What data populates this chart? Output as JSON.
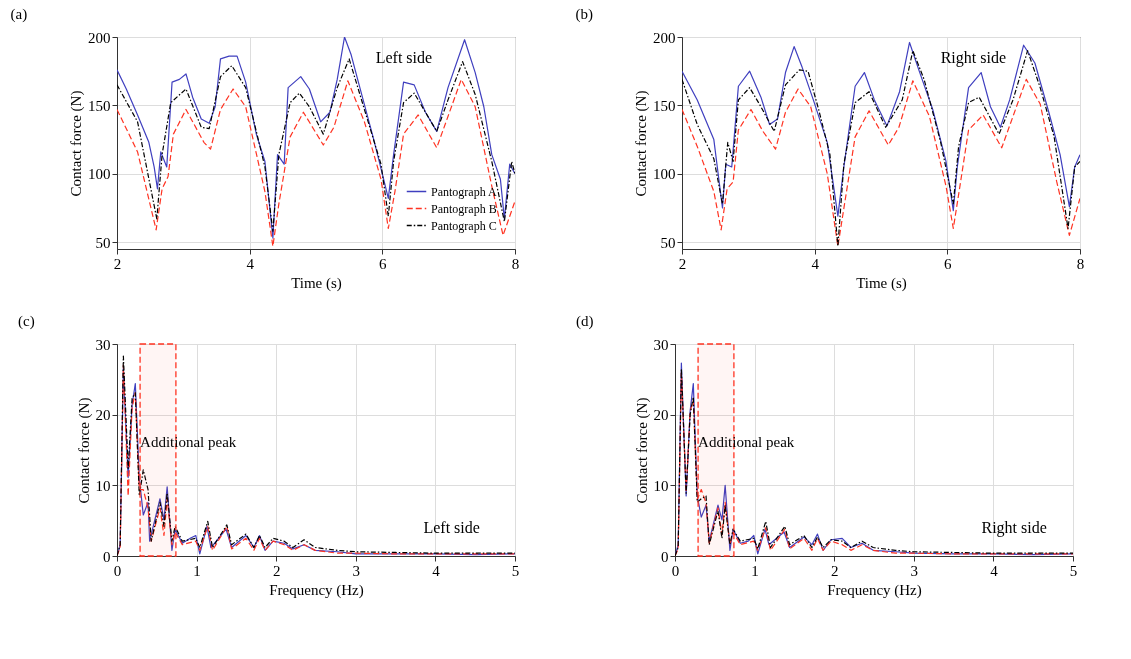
{
  "chart_data": [
    {
      "type": "line",
      "title": "(a)",
      "xlabel": "Time (s)",
      "ylabel": "Contact force (N)",
      "xlim": [
        2,
        8
      ],
      "ylim": [
        45,
        200
      ],
      "xticks": [
        2,
        4,
        6,
        8
      ],
      "yticks": [
        50,
        100,
        150,
        200
      ],
      "grid": true,
      "legend": "bottom right",
      "annotations": [
        "Left side"
      ],
      "series": [
        {
          "name": "Pantograph A",
          "color": "#3f3fbf",
          "line_style": "solid",
          "x": [
            2.0,
            2.14,
            2.31,
            2.48,
            2.56,
            2.61,
            2.66,
            2.75,
            2.83,
            2.94,
            3.04,
            3.14,
            3.27,
            3.39,
            3.48,
            3.56,
            3.69,
            3.81,
            3.94,
            4.1,
            4.23,
            4.35,
            4.42,
            4.52,
            4.58,
            4.77,
            4.9,
            5.07,
            5.21,
            5.32,
            5.43,
            5.53,
            5.65,
            5.86,
            6.0,
            6.09,
            6.17,
            6.32,
            6.48,
            6.65,
            6.82,
            6.99,
            7.24,
            7.4,
            7.53,
            7.65,
            7.78,
            7.84,
            7.92,
            8.0
          ],
          "values": [
            176,
            162,
            143,
            123,
            105,
            89,
            116,
            105,
            167,
            169,
            173,
            156,
            140,
            137,
            149,
            184,
            186,
            186,
            167,
            129,
            109,
            53,
            114,
            107,
            163,
            171,
            162,
            138,
            145,
            169,
            200,
            187,
            165,
            127,
            100,
            82,
            114,
            167,
            165,
            145,
            131,
            163,
            198,
            174,
            149,
            114,
            96,
            67,
            107,
            100
          ]
        },
        {
          "name": "Pantograph B",
          "color": "#ff3322",
          "line_style": "dashed",
          "x": [
            2.0,
            2.31,
            2.59,
            2.68,
            2.77,
            2.85,
            3.04,
            3.31,
            3.41,
            3.56,
            3.75,
            3.94,
            4.23,
            4.35,
            4.44,
            4.61,
            4.81,
            5.11,
            5.27,
            5.48,
            5.73,
            5.98,
            6.09,
            6.19,
            6.32,
            6.54,
            6.82,
            7.19,
            7.4,
            7.65,
            7.82,
            8.0
          ],
          "values": [
            147,
            116,
            59,
            89,
            98,
            129,
            147,
            123,
            118,
            147,
            162,
            149,
            87,
            47,
            78,
            127,
            145,
            121,
            134,
            168,
            138,
            96,
            60,
            87,
            129,
            143,
            119,
            169,
            149,
            91,
            55,
            80
          ]
        },
        {
          "name": "Pantograph C",
          "color": "#000000",
          "line_style": "dotted",
          "x": [
            2.0,
            2.31,
            2.6,
            2.68,
            2.81,
            3.04,
            3.27,
            3.39,
            3.56,
            3.73,
            3.94,
            4.23,
            4.35,
            4.44,
            4.61,
            4.75,
            4.9,
            5.11,
            5.32,
            5.5,
            5.73,
            5.98,
            6.09,
            6.17,
            6.32,
            6.48,
            6.82,
            6.99,
            7.21,
            7.4,
            7.65,
            7.84,
            7.95,
            8.0
          ],
          "values": [
            165,
            138,
            67,
            114,
            152,
            162,
            134,
            133,
            171,
            179,
            163,
            105,
            58,
            114,
            152,
            159,
            149,
            129,
            163,
            184,
            147,
            107,
            69,
            109,
            152,
            159,
            131,
            154,
            182,
            158,
            109,
            65,
            109,
            100
          ]
        }
      ]
    },
    {
      "type": "line",
      "title": "(b)",
      "xlabel": "Time (s)",
      "ylabel": "Contact force (N)",
      "xlim": [
        2,
        8
      ],
      "ylim": [
        45,
        200
      ],
      "xticks": [
        2,
        4,
        6,
        8
      ],
      "yticks": [
        50,
        100,
        150,
        200
      ],
      "grid": true,
      "annotations": [
        "Right side"
      ],
      "series": [
        {
          "color": "#3f3fbf",
          "line_style": "solid",
          "x": [
            2.0,
            2.23,
            2.48,
            2.61,
            2.66,
            2.75,
            2.85,
            3.02,
            3.19,
            3.32,
            3.44,
            3.56,
            3.69,
            3.81,
            3.98,
            4.19,
            4.35,
            4.44,
            4.61,
            4.75,
            4.9,
            5.09,
            5.28,
            5.43,
            5.57,
            5.78,
            5.98,
            6.09,
            6.15,
            6.32,
            6.51,
            6.65,
            6.8,
            6.94,
            7.15,
            7.32,
            7.53,
            7.7,
            7.84,
            7.92,
            8.0
          ],
          "values": [
            175,
            154,
            125,
            75,
            107,
            105,
            164,
            175,
            156,
            136,
            140,
            174,
            193,
            178,
            154,
            123,
            69,
            105,
            164,
            174,
            154,
            135,
            160,
            196,
            176,
            147,
            109,
            73,
            105,
            163,
            174,
            149,
            134,
            154,
            194,
            181,
            145,
            114,
            76,
            105,
            114
          ]
        },
        {
          "color": "#ff3322",
          "line_style": "dashed",
          "x": [
            2.0,
            2.23,
            2.48,
            2.59,
            2.68,
            2.77,
            2.85,
            3.04,
            3.22,
            3.41,
            3.56,
            3.75,
            3.94,
            4.19,
            4.35,
            4.48,
            4.61,
            4.82,
            5.11,
            5.27,
            5.48,
            5.73,
            5.98,
            6.09,
            6.19,
            6.32,
            6.54,
            6.82,
            7.19,
            7.4,
            7.65,
            7.84,
            8.0
          ],
          "values": [
            147,
            120,
            87,
            59,
            89,
            94,
            132,
            147,
            131,
            118,
            145,
            162,
            149,
            100,
            47,
            87,
            127,
            146,
            121,
            134,
            168,
            142,
            91,
            60,
            91,
            132,
            143,
            119,
            169,
            151,
            94,
            55,
            82
          ]
        },
        {
          "color": "#000000",
          "line_style": "dotted",
          "x": [
            2.0,
            2.23,
            2.48,
            2.61,
            2.69,
            2.77,
            2.85,
            3.02,
            3.19,
            3.39,
            3.56,
            3.77,
            3.9,
            4.06,
            4.23,
            4.35,
            4.44,
            4.61,
            4.82,
            5.07,
            5.32,
            5.48,
            5.65,
            5.9,
            6.09,
            6.17,
            6.32,
            6.48,
            6.78,
            6.99,
            7.21,
            7.4,
            7.61,
            7.82,
            7.92,
            8.0
          ],
          "values": [
            169,
            136,
            111,
            78,
            123,
            109,
            154,
            163,
            149,
            131,
            165,
            176,
            175,
            147,
            114,
            47,
            107,
            152,
            160,
            134,
            154,
            190,
            169,
            123,
            78,
            120,
            152,
            156,
            129,
            154,
            190,
            163,
            127,
            60,
            105,
            109
          ]
        }
      ]
    },
    {
      "type": "line",
      "title": "(c)",
      "xlabel": "Frequency (Hz)",
      "ylabel": "Contact force (N)",
      "xlim": [
        0,
        5
      ],
      "ylim": [
        0,
        30
      ],
      "xticks": [
        0,
        1,
        2,
        3,
        4,
        5
      ],
      "yticks": [
        0,
        10,
        20,
        30
      ],
      "grid": true,
      "annotations": [
        "Left side"
      ],
      "bands": [
        {
          "axis": "x",
          "from": 0.29,
          "to": 0.74,
          "label": "Additional peak",
          "color": "#ff3322"
        }
      ],
      "series": [
        {
          "color": "#3f3fbf",
          "line_style": "solid",
          "x": [
            0,
            0.04,
            0.08,
            0.14,
            0.19,
            0.23,
            0.28,
            0.33,
            0.39,
            0.41,
            0.54,
            0.59,
            0.63,
            0.69,
            0.73,
            0.82,
            0.92,
            0.99,
            1.04,
            1.13,
            1.18,
            1.37,
            1.44,
            1.62,
            1.72,
            1.79,
            1.86,
            1.96,
            2.1,
            2.21,
            2.35,
            2.49,
            2.77,
            3.0,
            3.5,
            4,
            4.5,
            5
          ],
          "values": [
            0,
            1.6,
            26.6,
            11.1,
            21.4,
            24.4,
            11.1,
            5.8,
            7.6,
            2.1,
            8.1,
            5.1,
            9.8,
            0.8,
            3.8,
            1.8,
            2.5,
            2.9,
            0.3,
            4.2,
            1.2,
            3.8,
            1.2,
            2.9,
            1.2,
            2.9,
            0.8,
            2.1,
            1.8,
            1.0,
            1.6,
            0.8,
            0.6,
            0.3,
            0.3,
            0.3,
            0.2,
            0.3
          ]
        },
        {
          "color": "#ff3322",
          "line_style": "dashed",
          "x": [
            0,
            0.04,
            0.08,
            0.14,
            0.19,
            0.23,
            0.28,
            0.33,
            0.39,
            0.43,
            0.54,
            0.59,
            0.63,
            0.69,
            0.73,
            0.82,
            0.99,
            1.04,
            1.14,
            1.2,
            1.38,
            1.44,
            1.62,
            1.72,
            1.79,
            1.86,
            1.96,
            2.1,
            2.21,
            2.35,
            2.49,
            2.77,
            3.0,
            3.5,
            4,
            4.5,
            5
          ],
          "values": [
            0,
            1.2,
            27.0,
            8.5,
            21.0,
            23.1,
            9.4,
            9.4,
            6.8,
            2.1,
            6.8,
            2.9,
            8.1,
            1.6,
            3.4,
            1.6,
            2.1,
            0.8,
            4.2,
            0.8,
            4.2,
            1.0,
            2.5,
            0.8,
            2.5,
            0.8,
            2.1,
            1.6,
            0.8,
            1.6,
            0.8,
            0.4,
            0.4,
            0.3,
            0.3,
            0.3,
            0.3
          ]
        },
        {
          "color": "#000000",
          "line_style": "dotted",
          "x": [
            0,
            0.04,
            0.08,
            0.14,
            0.19,
            0.23,
            0.28,
            0.33,
            0.39,
            0.43,
            0.54,
            0.59,
            0.63,
            0.69,
            0.73,
            0.82,
            0.99,
            1.04,
            1.14,
            1.2,
            1.38,
            1.44,
            1.62,
            1.72,
            1.79,
            1.86,
            1.96,
            2.1,
            2.21,
            2.35,
            2.49,
            2.77,
            3.0,
            3.5,
            4,
            4.5,
            5
          ],
          "values": [
            0,
            1.6,
            28.3,
            12.4,
            22.3,
            23.1,
            8.5,
            12.2,
            9.4,
            2.1,
            7.6,
            4.2,
            8.9,
            2.1,
            4.2,
            2.1,
            2.5,
            1.2,
            4.9,
            1.2,
            4.4,
            1.6,
            3.1,
            1.2,
            2.9,
            1.2,
            2.5,
            2.1,
            1.2,
            2.3,
            1.2,
            0.8,
            0.6,
            0.5,
            0.4,
            0.4,
            0.4
          ]
        }
      ]
    },
    {
      "type": "line",
      "title": "(d)",
      "xlabel": "Frequency (Hz)",
      "ylabel": "Contact force (N)",
      "xlim": [
        0,
        5
      ],
      "ylim": [
        0,
        30
      ],
      "xticks": [
        0,
        1,
        2,
        3,
        4,
        5
      ],
      "yticks": [
        0,
        10,
        20,
        30
      ],
      "grid": true,
      "annotations": [
        "Right side"
      ],
      "bands": [
        {
          "axis": "x",
          "from": 0.29,
          "to": 0.74,
          "label": "Additional peak",
          "color": "#ff3322"
        }
      ],
      "series": [
        {
          "color": "#3f3fbf",
          "line_style": "solid",
          "x": [
            0,
            0.04,
            0.08,
            0.14,
            0.19,
            0.23,
            0.28,
            0.33,
            0.39,
            0.43,
            0.54,
            0.59,
            0.63,
            0.69,
            0.73,
            0.82,
            0.92,
            0.99,
            1.04,
            1.13,
            1.18,
            1.37,
            1.44,
            1.62,
            1.72,
            1.79,
            1.86,
            1.96,
            2.1,
            2.21,
            2.35,
            2.49,
            2.77,
            3.0,
            3.5,
            4,
            4.5,
            5
          ],
          "values": [
            0,
            1.6,
            27.3,
            8.5,
            20.5,
            24.4,
            8.5,
            5.5,
            7.2,
            2.1,
            7.2,
            5.1,
            10.0,
            0.8,
            3.8,
            1.8,
            2.1,
            2.9,
            0.3,
            3.8,
            1.6,
            3.4,
            1.2,
            2.7,
            1.6,
            3.1,
            0.8,
            2.3,
            2.5,
            1.2,
            1.8,
            0.8,
            0.6,
            0.4,
            0.3,
            0.3,
            0.2,
            0.3
          ]
        },
        {
          "color": "#ff3322",
          "line_style": "dashed",
          "x": [
            0,
            0.04,
            0.08,
            0.14,
            0.19,
            0.23,
            0.28,
            0.33,
            0.39,
            0.43,
            0.54,
            0.59,
            0.63,
            0.69,
            0.73,
            0.82,
            0.99,
            1.04,
            1.14,
            1.2,
            1.38,
            1.44,
            1.62,
            1.72,
            1.79,
            1.86,
            1.96,
            2.1,
            2.21,
            2.35,
            2.49,
            2.77,
            3.0,
            3.5,
            4,
            4.5,
            5
          ],
          "values": [
            0,
            1.0,
            26.0,
            9.0,
            20.5,
            22.0,
            8.0,
            9.4,
            7.5,
            1.8,
            6.8,
            3.0,
            7.6,
            1.6,
            3.4,
            1.6,
            2.1,
            0.8,
            4.0,
            0.8,
            3.8,
            1.0,
            2.5,
            0.8,
            2.5,
            0.8,
            2.1,
            1.6,
            0.8,
            1.6,
            0.8,
            0.4,
            0.4,
            0.3,
            0.3,
            0.3,
            0.3
          ]
        },
        {
          "color": "#000000",
          "line_style": "dotted",
          "x": [
            0,
            0.04,
            0.08,
            0.14,
            0.19,
            0.23,
            0.28,
            0.33,
            0.39,
            0.43,
            0.54,
            0.59,
            0.63,
            0.69,
            0.73,
            0.82,
            0.99,
            1.04,
            1.14,
            1.2,
            1.38,
            1.44,
            1.62,
            1.72,
            1.79,
            1.86,
            1.96,
            2.1,
            2.21,
            2.35,
            2.49,
            2.77,
            3.0,
            3.5,
            4,
            4.5,
            5
          ],
          "values": [
            0,
            1.2,
            26.5,
            8.9,
            20.0,
            22.5,
            7.6,
            8.1,
            8.5,
            1.6,
            6.4,
            2.5,
            7.2,
            1.6,
            3.8,
            2.1,
            2.5,
            1.0,
            4.9,
            1.2,
            4.2,
            1.6,
            2.9,
            1.2,
            2.7,
            1.2,
            2.3,
            2.1,
            1.2,
            2.1,
            1.2,
            0.8,
            0.6,
            0.5,
            0.4,
            0.4,
            0.4
          ]
        }
      ]
    }
  ]
}
